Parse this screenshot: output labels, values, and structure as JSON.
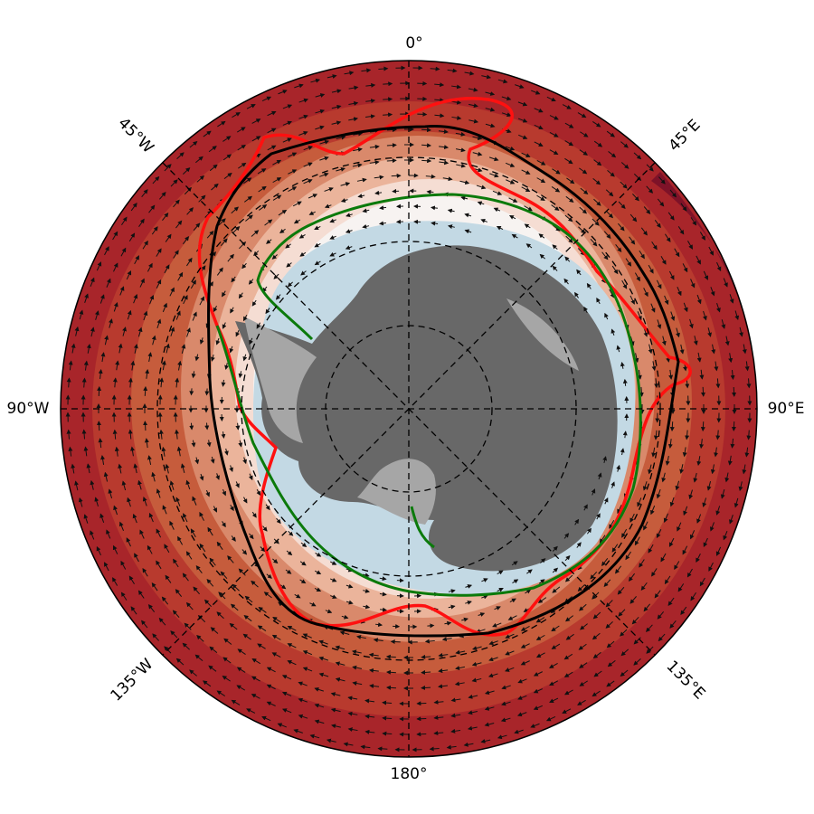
{
  "map": {
    "longitude_labels": [
      "0°",
      "45°E",
      "90°E",
      "135°E",
      "180°",
      "135°W",
      "90°W",
      "45°W"
    ]
  }
}
